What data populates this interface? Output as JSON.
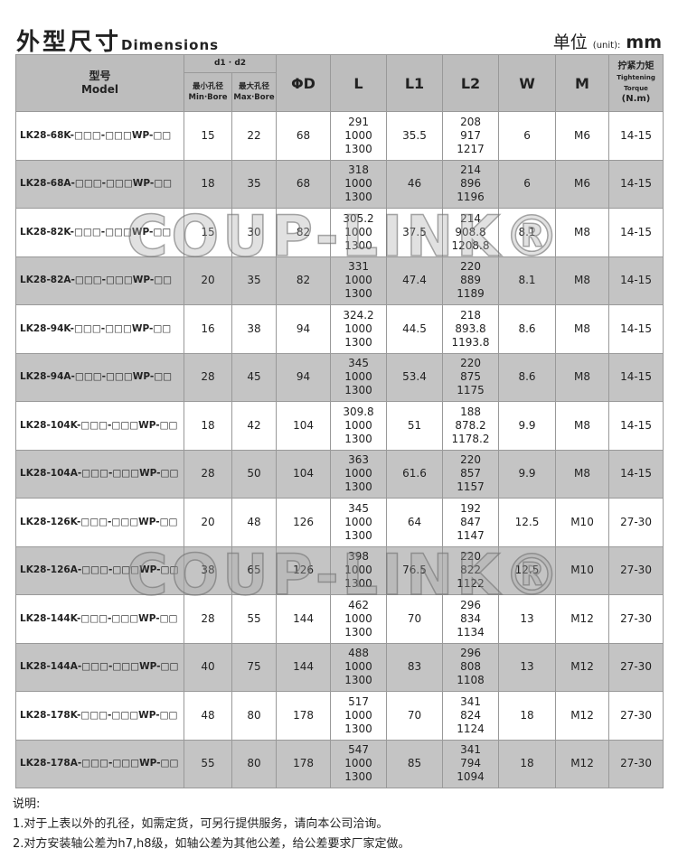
{
  "header": {
    "title_cn": "外型尺寸",
    "title_en": "Dimensions",
    "unit_cn": "单位",
    "unit_paren": "(unit):",
    "unit": "mm"
  },
  "columns": {
    "model_cn": "型号",
    "model_en": "Model",
    "d_group": "d1 · d2",
    "min_cn": "最小孔径",
    "min_en": "Min·Bore",
    "max_cn": "最大孔径",
    "max_en": "Max·Bore",
    "D": "ΦD",
    "L": "L",
    "L1": "L1",
    "L2": "L2",
    "W": "W",
    "M": "M",
    "torque_cn": "拧紧力矩",
    "torque_en": "Tightening Torque",
    "torque_unit": "(N.m)"
  },
  "rows": [
    {
      "model": "LK28-68K-□□□-□□□WP-□□",
      "min": "15",
      "max": "22",
      "D": "68",
      "L": [
        "291",
        "1000",
        "1300"
      ],
      "L1": "35.5",
      "L2": [
        "208",
        "917",
        "1217"
      ],
      "W": "6",
      "M": "M6",
      "T": "14-15"
    },
    {
      "model": "LK28-68A-□□□-□□□WP-□□",
      "min": "18",
      "max": "35",
      "D": "68",
      "L": [
        "318",
        "1000",
        "1300"
      ],
      "L1": "46",
      "L2": [
        "214",
        "896",
        "1196"
      ],
      "W": "6",
      "M": "M6",
      "T": "14-15"
    },
    {
      "model": "LK28-82K-□□□-□□□WP-□□",
      "min": "15",
      "max": "30",
      "D": "82",
      "L": [
        "305.2",
        "1000",
        "1300"
      ],
      "L1": "37.5",
      "L2": [
        "214",
        "908.8",
        "1208.8"
      ],
      "W": "8.1",
      "M": "M8",
      "T": "14-15"
    },
    {
      "model": "LK28-82A-□□□-□□□WP-□□",
      "min": "20",
      "max": "35",
      "D": "82",
      "L": [
        "331",
        "1000",
        "1300"
      ],
      "L1": "47.4",
      "L2": [
        "220",
        "889",
        "1189"
      ],
      "W": "8.1",
      "M": "M8",
      "T": "14-15"
    },
    {
      "model": "LK28-94K-□□□-□□□WP-□□",
      "min": "16",
      "max": "38",
      "D": "94",
      "L": [
        "324.2",
        "1000",
        "1300"
      ],
      "L1": "44.5",
      "L2": [
        "218",
        "893.8",
        "1193.8"
      ],
      "W": "8.6",
      "M": "M8",
      "T": "14-15"
    },
    {
      "model": "LK28-94A-□□□-□□□WP-□□",
      "min": "28",
      "max": "45",
      "D": "94",
      "L": [
        "345",
        "1000",
        "1300"
      ],
      "L1": "53.4",
      "L2": [
        "220",
        "875",
        "1175"
      ],
      "W": "8.6",
      "M": "M8",
      "T": "14-15"
    },
    {
      "model": "LK28-104K-□□□-□□□WP-□□",
      "min": "18",
      "max": "42",
      "D": "104",
      "L": [
        "309.8",
        "1000",
        "1300"
      ],
      "L1": "51",
      "L2": [
        "188",
        "878.2",
        "1178.2"
      ],
      "W": "9.9",
      "M": "M8",
      "T": "14-15"
    },
    {
      "model": "LK28-104A-□□□-□□□WP-□□",
      "min": "28",
      "max": "50",
      "D": "104",
      "L": [
        "363",
        "1000",
        "1300"
      ],
      "L1": "61.6",
      "L2": [
        "220",
        "857",
        "1157"
      ],
      "W": "9.9",
      "M": "M8",
      "T": "14-15"
    },
    {
      "model": "LK28-126K-□□□-□□□WP-□□",
      "min": "20",
      "max": "48",
      "D": "126",
      "L": [
        "345",
        "1000",
        "1300"
      ],
      "L1": "64",
      "L2": [
        "192",
        "847",
        "1147"
      ],
      "W": "12.5",
      "M": "M10",
      "T": "27-30"
    },
    {
      "model": "LK28-126A-□□□-□□□WP-□□",
      "min": "38",
      "max": "65",
      "D": "126",
      "L": [
        "398",
        "1000",
        "1300"
      ],
      "L1": "76.5",
      "L2": [
        "220",
        "822",
        "1122"
      ],
      "W": "12.5",
      "M": "M10",
      "T": "27-30"
    },
    {
      "model": "LK28-144K-□□□-□□□WP-□□",
      "min": "28",
      "max": "55",
      "D": "144",
      "L": [
        "462",
        "1000",
        "1300"
      ],
      "L1": "70",
      "L2": [
        "296",
        "834",
        "1134"
      ],
      "W": "13",
      "M": "M12",
      "T": "27-30"
    },
    {
      "model": "LK28-144A-□□□-□□□WP-□□",
      "min": "40",
      "max": "75",
      "D": "144",
      "L": [
        "488",
        "1000",
        "1300"
      ],
      "L1": "83",
      "L2": [
        "296",
        "808",
        "1108"
      ],
      "W": "13",
      "M": "M12",
      "T": "27-30"
    },
    {
      "model": "LK28-178K-□□□-□□□WP-□□",
      "min": "48",
      "max": "80",
      "D": "178",
      "L": [
        "517",
        "1000",
        "1300"
      ],
      "L1": "70",
      "L2": [
        "341",
        "824",
        "1124"
      ],
      "W": "18",
      "M": "M12",
      "T": "27-30"
    },
    {
      "model": "LK28-178A-□□□-□□□WP-□□",
      "min": "55",
      "max": "80",
      "D": "178",
      "L": [
        "547",
        "1000",
        "1300"
      ],
      "L1": "85",
      "L2": [
        "341",
        "794",
        "1094"
      ],
      "W": "18",
      "M": "M12",
      "T": "27-30"
    }
  ],
  "watermark": "COUP-LINK®",
  "notes": {
    "heading": "说明:",
    "items": [
      "1.对于上表以外的孔径，如需定货，可另行提供服务，请向本公司洽询。",
      "2.对方安装轴公差为h7,h8级，如轴公差为其他公差，给公差要求厂家定做。"
    ]
  }
}
